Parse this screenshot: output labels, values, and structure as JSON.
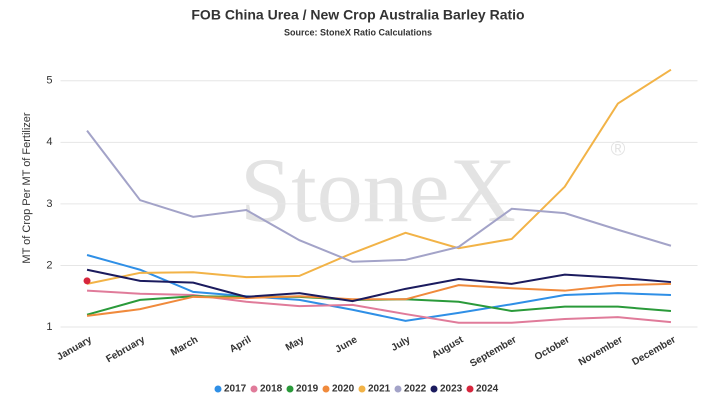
{
  "chart_data": {
    "type": "line",
    "title": "FOB China Urea / New Crop Australia Barley Ratio",
    "subtitle": "Source: StoneX Ratio Calculations",
    "y_label": "MT of Crop Per MT of Fertilizer",
    "watermark": "StoneX",
    "watermark_mark": "®",
    "categories": [
      "January",
      "February",
      "March",
      "April",
      "May",
      "June",
      "July",
      "August",
      "September",
      "October",
      "November",
      "December"
    ],
    "ylim": [
      1,
      5.5
    ],
    "yticks": [
      1,
      2,
      3,
      4,
      5
    ],
    "grid": true,
    "legend": "bottom",
    "series": [
      {
        "name": "2017",
        "color": "#2f8fe6",
        "values": [
          2.17,
          1.93,
          1.57,
          1.5,
          1.44,
          1.28,
          1.1,
          1.23,
          1.37,
          1.52,
          1.55,
          1.52
        ]
      },
      {
        "name": "2018",
        "color": "#e07b9a",
        "values": [
          1.59,
          1.54,
          1.52,
          1.41,
          1.34,
          1.36,
          1.21,
          1.07,
          1.07,
          1.13,
          1.16,
          1.08
        ]
      },
      {
        "name": "2019",
        "color": "#2a9a3a",
        "values": [
          1.2,
          1.44,
          1.5,
          1.49,
          1.49,
          1.44,
          1.45,
          1.41,
          1.26,
          1.33,
          1.33,
          1.26
        ]
      },
      {
        "name": "2020",
        "color": "#f08a3c",
        "values": [
          1.18,
          1.29,
          1.49,
          1.47,
          1.5,
          1.45,
          1.45,
          1.68,
          1.63,
          1.59,
          1.68,
          1.7
        ]
      },
      {
        "name": "2021",
        "color": "#f2b347",
        "values": [
          1.7,
          1.88,
          1.89,
          1.81,
          1.83,
          2.2,
          2.53,
          2.28,
          2.43,
          3.28,
          4.63,
          5.18
        ]
      },
      {
        "name": "2022",
        "color": "#a3a3c8",
        "values": [
          4.19,
          3.06,
          2.79,
          2.9,
          2.41,
          2.06,
          2.09,
          2.3,
          2.92,
          2.85,
          2.58,
          2.32
        ]
      },
      {
        "name": "2023",
        "color": "#1b1b5e",
        "values": [
          1.93,
          1.75,
          1.72,
          1.49,
          1.55,
          1.42,
          1.62,
          1.78,
          1.7,
          1.85,
          1.8,
          1.73
        ]
      },
      {
        "name": "2024",
        "color": "#d7263d",
        "values": [
          1.75,
          null,
          null,
          null,
          null,
          null,
          null,
          null,
          null,
          null,
          null,
          null
        ]
      }
    ]
  }
}
